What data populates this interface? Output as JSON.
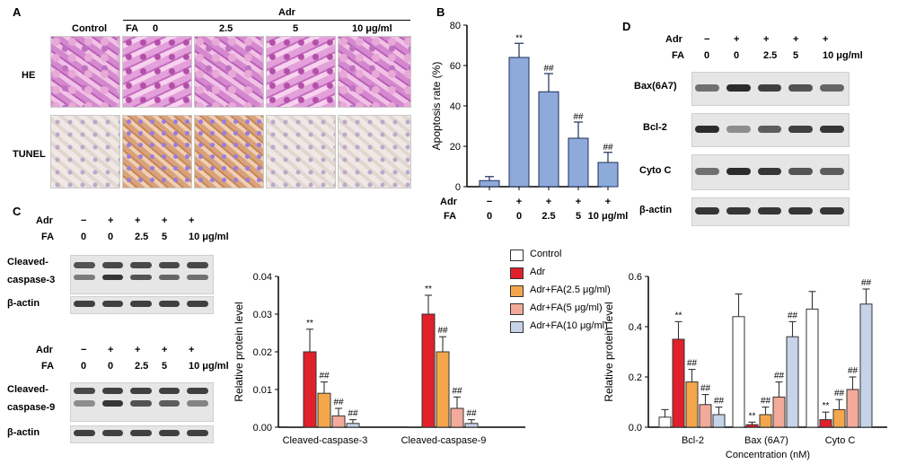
{
  "panels": {
    "A": "A",
    "B": "B",
    "C": "C",
    "D": "D"
  },
  "panelA": {
    "adr_label": "Adr",
    "columns": [
      "Control",
      "FA",
      "0",
      "2.5",
      "5",
      "10 μg/ml"
    ],
    "rows": [
      "HE",
      "TUNEL"
    ]
  },
  "treatments": {
    "adr_label": "Adr",
    "fa_label": "FA",
    "adr": [
      "−",
      "+",
      "+",
      "+",
      "+"
    ],
    "fa": [
      "0",
      "0",
      "2.5",
      "5",
      "10 μg/ml"
    ]
  },
  "blotsC": {
    "top_labels": [
      "Cleaved-",
      "caspase-3",
      "β-actin"
    ],
    "bottom_labels": [
      "Cleaved-",
      "caspase-9",
      "β-actin"
    ]
  },
  "blotsD": {
    "labels": [
      "Bax(6A7)",
      "Bcl-2",
      "Cyto C",
      "β-actin"
    ]
  },
  "colors": {
    "control": "#ffffff",
    "adr": "#e0202a",
    "fa25": "#f4a74a",
    "fa5": "#f3aa9a",
    "fa10": "#c6d3e8",
    "panelB": "#8eaadb"
  },
  "legend": [
    "Control",
    "Adr",
    "Adr+FA(2.5 μg/ml)",
    "Adr+FA(5 μg/ml)",
    "Adr+FA(10 μg/ml)"
  ],
  "chart_data": [
    {
      "type": "bar",
      "panel": "B",
      "categories": [
        "0",
        "0",
        "2.5",
        "5",
        "10 μg/ml"
      ],
      "values": [
        3,
        64,
        47,
        24,
        12
      ],
      "errors": [
        2,
        7,
        9,
        8,
        5
      ],
      "annotations": [
        "",
        "**",
        "##",
        "##",
        "##"
      ],
      "ylabel": "Apoptosis rate (%)",
      "ylim": [
        0,
        80
      ],
      "yticks": [
        0,
        20,
        40,
        60,
        80
      ]
    },
    {
      "type": "bar",
      "panel": "C",
      "categories": [
        "Cleaved-caspase-3",
        "Cleaved-caspase-9"
      ],
      "series": [
        {
          "name": "Control",
          "values": [
            0,
            0
          ],
          "errors": [
            0,
            0
          ],
          "annotations": [
            "",
            ""
          ]
        },
        {
          "name": "Adr",
          "values": [
            0.02,
            0.03
          ],
          "errors": [
            0.006,
            0.005
          ],
          "annotations": [
            "**",
            "**"
          ]
        },
        {
          "name": "Adr+FA(2.5 μg/ml)",
          "values": [
            0.009,
            0.02
          ],
          "errors": [
            0.003,
            0.004
          ],
          "annotations": [
            "##",
            "##"
          ]
        },
        {
          "name": "Adr+FA(5 μg/ml)",
          "values": [
            0.003,
            0.005
          ],
          "errors": [
            0.002,
            0.003
          ],
          "annotations": [
            "##",
            "##"
          ]
        },
        {
          "name": "Adr+FA(10 μg/ml)",
          "values": [
            0.001,
            0.001
          ],
          "errors": [
            0.001,
            0.001
          ],
          "annotations": [
            "##",
            "##"
          ]
        }
      ],
      "ylabel": "Relative protein level",
      "ylim": [
        0,
        0.04
      ],
      "yticks": [
        "0.00",
        "0.01",
        "0.02",
        "0.03",
        "0.04"
      ]
    },
    {
      "type": "bar",
      "panel": "D",
      "categories": [
        "Bcl-2",
        "Bax (6A7)",
        "Cyto C"
      ],
      "series": [
        {
          "name": "Control",
          "values": [
            0.04,
            0.44,
            0.47
          ],
          "errors": [
            0.03,
            0.09,
            0.07
          ],
          "annotations": [
            "",
            "",
            ""
          ]
        },
        {
          "name": "Adr",
          "values": [
            0.35,
            0.01,
            0.03
          ],
          "errors": [
            0.07,
            0.01,
            0.03
          ],
          "annotations": [
            "**",
            "**",
            "**"
          ]
        },
        {
          "name": "Adr+FA(2.5 μg/ml)",
          "values": [
            0.18,
            0.05,
            0.07
          ],
          "errors": [
            0.05,
            0.03,
            0.04
          ],
          "annotations": [
            "##",
            "##",
            "##"
          ]
        },
        {
          "name": "Adr+FA(5 μg/ml)",
          "values": [
            0.09,
            0.12,
            0.15
          ],
          "errors": [
            0.04,
            0.06,
            0.05
          ],
          "annotations": [
            "##",
            "##",
            "##"
          ]
        },
        {
          "name": "Adr+FA(10 μg/ml)",
          "values": [
            0.05,
            0.36,
            0.49
          ],
          "errors": [
            0.03,
            0.06,
            0.06
          ],
          "annotations": [
            "##",
            "##",
            "##"
          ]
        }
      ],
      "ylabel": "Relative protein level",
      "xlabel": "Concentration (nM)",
      "ylim": [
        0,
        0.6
      ],
      "yticks": [
        "0.0",
        "0.2",
        "0.4",
        "0.6"
      ]
    }
  ]
}
